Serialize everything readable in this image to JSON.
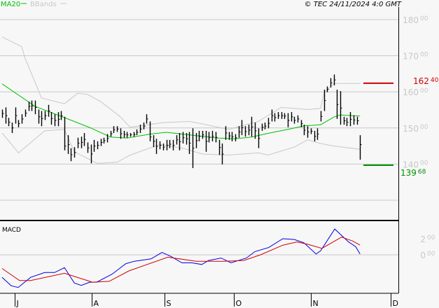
{
  "header": {
    "legend": [
      {
        "label": "MA20",
        "color": "#00c000"
      },
      {
        "label": "BBands",
        "color": "#c8c8c8"
      }
    ],
    "copyright": "© TEC 24/11/2024 4:0 GMT"
  },
  "chart_data": [
    {
      "type": "ohlc",
      "ylim": [
        125,
        185
      ],
      "grid": true,
      "yticks": [
        {
          "int": "180",
          "dec": "00",
          "value": 180
        },
        {
          "int": "170",
          "dec": "00",
          "value": 170
        },
        {
          "int": "160",
          "dec": "00",
          "value": 160
        },
        {
          "int": "150",
          "dec": "00",
          "value": 150
        },
        {
          "int": "140",
          "dec": "00",
          "value": 140
        },
        {
          "value": 130
        }
      ],
      "xticks": [
        "J",
        "A",
        "S",
        "O",
        "N",
        "D"
      ],
      "bars_hlc": [
        [
          155.1,
          152.8,
          154.0
        ],
        [
          155.7,
          151.2,
          153.4
        ],
        [
          152.8,
          150.5,
          151.6
        ],
        [
          151.5,
          148.6,
          150.0
        ],
        [
          155.7,
          151.2,
          153.4
        ],
        [
          152.2,
          150.2,
          151.2
        ],
        [
          153.8,
          151.2,
          152.5
        ],
        [
          155.1,
          153.1,
          154.1
        ],
        [
          157.3,
          154.7,
          156.0
        ],
        [
          157.6,
          154.7,
          156.1
        ],
        [
          157.6,
          153.8,
          155.7
        ],
        [
          155.1,
          151.2,
          153.1
        ],
        [
          154.7,
          150.5,
          152.6
        ],
        [
          154.7,
          152.2,
          153.4
        ],
        [
          156.4,
          153.1,
          154.7
        ],
        [
          154.4,
          150.9,
          152.6
        ],
        [
          153.8,
          150.5,
          152.1
        ],
        [
          154.4,
          150.5,
          152.4
        ],
        [
          154.7,
          152.2,
          153.4
        ],
        [
          153.1,
          143.8,
          145.0
        ],
        [
          148.0,
          142.8,
          145.4
        ],
        [
          144.4,
          140.8,
          142.6
        ],
        [
          144.7,
          141.8,
          143.2
        ],
        [
          147.3,
          144.4,
          145.8
        ],
        [
          147.6,
          144.4,
          146.0
        ],
        [
          148.6,
          145.0,
          146.8
        ],
        [
          146.0,
          143.1,
          144.5
        ],
        [
          145.4,
          140.2,
          142.8
        ],
        [
          146.7,
          143.4,
          145.0
        ],
        [
          146.3,
          144.1,
          145.2
        ],
        [
          147.0,
          145.0,
          146.0
        ],
        [
          147.3,
          145.7,
          146.5
        ],
        [
          148.3,
          146.0,
          147.1
        ],
        [
          149.2,
          147.6,
          148.4
        ],
        [
          150.5,
          148.6,
          149.5
        ],
        [
          150.5,
          148.9,
          149.7
        ],
        [
          149.9,
          147.0,
          148.4
        ],
        [
          149.2,
          147.3,
          148.2
        ],
        [
          148.9,
          147.3,
          148.1
        ],
        [
          148.6,
          147.6,
          148.1
        ],
        [
          148.9,
          147.6,
          148.2
        ],
        [
          149.6,
          148.0,
          148.8
        ],
        [
          150.9,
          148.6,
          149.7
        ],
        [
          151.5,
          149.6,
          150.5
        ],
        [
          153.8,
          151.2,
          152.5
        ],
        [
          151.8,
          146.3,
          147.5
        ],
        [
          148.0,
          144.7,
          146.3
        ],
        [
          147.0,
          142.8,
          144.9
        ],
        [
          146.3,
          144.1,
          145.2
        ],
        [
          145.7,
          143.8,
          144.7
        ],
        [
          146.7,
          143.8,
          145.2
        ],
        [
          146.7,
          144.4,
          145.5
        ],
        [
          146.7,
          143.8,
          145.2
        ],
        [
          148.0,
          145.4,
          146.7
        ],
        [
          148.6,
          143.8,
          146.2
        ],
        [
          148.9,
          145.7,
          147.3
        ],
        [
          148.6,
          145.4,
          147.0
        ],
        [
          148.9,
          142.8,
          145.8
        ],
        [
          149.9,
          138.9,
          144.4
        ],
        [
          148.6,
          144.4,
          146.5
        ],
        [
          149.2,
          146.3,
          147.7
        ],
        [
          149.2,
          147.0,
          148.1
        ],
        [
          149.2,
          143.4,
          146.3
        ],
        [
          148.9,
          146.0,
          147.4
        ],
        [
          149.2,
          146.3,
          147.7
        ],
        [
          148.9,
          146.0,
          147.4
        ],
        [
          146.7,
          142.5,
          144.6
        ],
        [
          145.7,
          139.9,
          142.8
        ],
        [
          150.5,
          146.7,
          148.6
        ],
        [
          148.9,
          146.7,
          147.8
        ],
        [
          148.9,
          146.3,
          147.6
        ],
        [
          148.3,
          146.3,
          147.3
        ],
        [
          150.5,
          147.3,
          148.9
        ],
        [
          152.2,
          148.0,
          150.1
        ],
        [
          150.5,
          147.6,
          149.0
        ],
        [
          150.9,
          148.0,
          149.4
        ],
        [
          153.1,
          147.6,
          150.3
        ],
        [
          151.5,
          147.0,
          149.2
        ],
        [
          149.9,
          144.4,
          147.1
        ],
        [
          151.2,
          149.2,
          150.2
        ],
        [
          151.5,
          149.6,
          150.5
        ],
        [
          152.8,
          149.9,
          151.3
        ],
        [
          155.1,
          151.8,
          153.4
        ],
        [
          154.1,
          151.8,
          152.9
        ],
        [
          154.4,
          152.5,
          153.4
        ],
        [
          154.4,
          152.5,
          153.4
        ],
        [
          154.1,
          152.5,
          153.3
        ],
        [
          154.1,
          150.2,
          152.1
        ],
        [
          154.4,
          151.8,
          153.1
        ],
        [
          153.1,
          151.2,
          152.1
        ],
        [
          153.5,
          151.5,
          152.5
        ],
        [
          152.2,
          150.2,
          151.2
        ],
        [
          150.9,
          148.0,
          149.4
        ],
        [
          150.5,
          147.3,
          148.9
        ],
        [
          149.9,
          148.3,
          149.1
        ],
        [
          149.2,
          146.3,
          147.7
        ],
        [
          149.9,
          146.7,
          148.3
        ],
        [
          154.7,
          151.8,
          153.2
        ],
        [
          160.6,
          154.7,
          157.6
        ],
        [
          161.5,
          159.9,
          160.7
        ],
        [
          163.8,
          161.2,
          162.5
        ],
        [
          164.8,
          161.8,
          163.3
        ],
        [
          160.6,
          152.5,
          156.5
        ],
        [
          160.2,
          150.9,
          155.5
        ],
        [
          153.1,
          150.9,
          152.0
        ],
        [
          152.8,
          150.5,
          151.6
        ],
        [
          154.4,
          150.5,
          152.4
        ],
        [
          153.5,
          150.9,
          152.2
        ],
        [
          153.1,
          150.9,
          152.0
        ],
        [
          148.0,
          141.2,
          145.4
        ]
      ],
      "ma20": [
        [
          0,
          162.2
        ],
        [
          10,
          156.0
        ],
        [
          20,
          152.5
        ],
        [
          27,
          150.0
        ],
        [
          33,
          147.5
        ],
        [
          38,
          147.2
        ],
        [
          45,
          148.3
        ],
        [
          50,
          148.8
        ],
        [
          55,
          148.3
        ],
        [
          60,
          147.8
        ],
        [
          66,
          147.2
        ],
        [
          71,
          147.0
        ],
        [
          76,
          147.5
        ],
        [
          81,
          148.5
        ],
        [
          87,
          149.6
        ],
        [
          92,
          150.6
        ],
        [
          97,
          150.9
        ],
        [
          101,
          153.0
        ],
        [
          103,
          153.6
        ],
        [
          109,
          153.3
        ]
      ],
      "bband_upper": [
        [
          0,
          175.2
        ],
        [
          6,
          172.5
        ],
        [
          7,
          169.3
        ],
        [
          12,
          158.3
        ],
        [
          19,
          156.7
        ],
        [
          23,
          159.6
        ],
        [
          26,
          159.3
        ],
        [
          30,
          157.3
        ],
        [
          36,
          153.1
        ],
        [
          39,
          150.2
        ],
        [
          49,
          151.5
        ],
        [
          57,
          151.8
        ],
        [
          60,
          151.3
        ],
        [
          69,
          149.6
        ],
        [
          78,
          151.8
        ],
        [
          85,
          155.7
        ],
        [
          93,
          155.1
        ],
        [
          97,
          155.4
        ],
        [
          98,
          159.6
        ],
        [
          101,
          162.3
        ],
        [
          109,
          162.3
        ]
      ],
      "bband_lower": [
        [
          0,
          148.6
        ],
        [
          5,
          143.1
        ],
        [
          8,
          145.4
        ],
        [
          13,
          149.2
        ],
        [
          19,
          149.6
        ],
        [
          22,
          143.4
        ],
        [
          29,
          140.2
        ],
        [
          35,
          140.5
        ],
        [
          39,
          142.5
        ],
        [
          48,
          145.4
        ],
        [
          55,
          144.4
        ],
        [
          61,
          142.8
        ],
        [
          69,
          142.5
        ],
        [
          78,
          143.1
        ],
        [
          81,
          142.5
        ],
        [
          89,
          144.7
        ],
        [
          93,
          146.7
        ],
        [
          97,
          145.7
        ],
        [
          101,
          145.0
        ],
        [
          109,
          144.1
        ]
      ],
      "levels": [
        {
          "label_int": "162",
          "label_dec": "40",
          "value": 162.4,
          "color": "#d00000"
        },
        {
          "label_int": "139",
          "label_dec": "68",
          "value": 139.68,
          "color": "#009000"
        }
      ]
    },
    {
      "type": "line",
      "title": "MACD",
      "ylim": [
        -6.5,
        4.5
      ],
      "yticks": [
        {
          "int": "2",
          "dec": "00",
          "value": 2
        },
        {
          "int": "0",
          "dec": "00",
          "value": 0
        }
      ],
      "series": [
        {
          "color": "#0000e0",
          "points": [
            [
              0,
              -2.8
            ],
            [
              2.8,
              -3.85
            ],
            [
              4.9,
              -4.05
            ],
            [
              8.7,
              -2.8
            ],
            [
              13,
              -2.2
            ],
            [
              16,
              -2.2
            ],
            [
              19,
              -1.6
            ],
            [
              22,
              -3.5
            ],
            [
              24.1,
              -3.8
            ],
            [
              26.7,
              -3.4
            ],
            [
              28.8,
              -3.4
            ],
            [
              33.5,
              -2.4
            ],
            [
              37.7,
              -1.1
            ],
            [
              40.3,
              -0.8
            ],
            [
              45.4,
              -0.5
            ],
            [
              48.7,
              0.3
            ],
            [
              51.4,
              -0.2
            ],
            [
              54.8,
              -1.0
            ],
            [
              57.8,
              -1.0
            ],
            [
              60.8,
              -1.2
            ],
            [
              62.9,
              -0.7
            ],
            [
              66.7,
              -0.4
            ],
            [
              69.7,
              -1.0
            ],
            [
              74.4,
              -0.4
            ],
            [
              77,
              0.4
            ],
            [
              81.2,
              0.9
            ],
            [
              85.5,
              2.0
            ],
            [
              89,
              1.9
            ],
            [
              91.9,
              1.5
            ],
            [
              95.6,
              0.1
            ],
            [
              97,
              0.5
            ],
            [
              101.3,
              3.2
            ],
            [
              105.5,
              1.6
            ],
            [
              107.7,
              1.0
            ],
            [
              109,
              0.1
            ]
          ]
        },
        {
          "color": "#d00000",
          "points": [
            [
              0,
              -1.7
            ],
            [
              5.3,
              -3.2
            ],
            [
              8.7,
              -3.2
            ],
            [
              19,
              -2.3
            ],
            [
              27.5,
              -3.4
            ],
            [
              32.6,
              -3.3
            ],
            [
              38.6,
              -2.0
            ],
            [
              50.5,
              -0.3
            ],
            [
              59.1,
              -0.8
            ],
            [
              67.6,
              -0.8
            ],
            [
              73.6,
              -0.7
            ],
            [
              78.7,
              0.0
            ],
            [
              85.5,
              1.2
            ],
            [
              89.8,
              1.6
            ],
            [
              93.2,
              1.3
            ],
            [
              97.4,
              0.8
            ],
            [
              103.4,
              2.2
            ],
            [
              106.8,
              1.7
            ],
            [
              109,
              1.2
            ]
          ]
        }
      ]
    }
  ]
}
